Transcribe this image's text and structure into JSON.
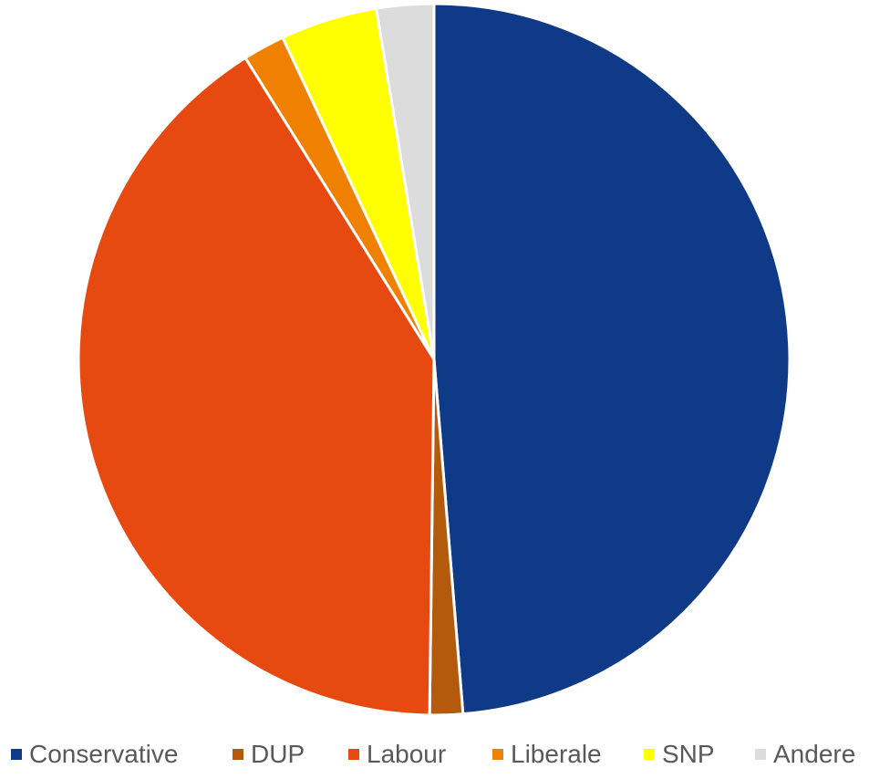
{
  "chart_data": {
    "type": "pie",
    "title": "",
    "legend_position": "bottom",
    "slices": [
      {
        "label": "Conservative",
        "value": 48.7,
        "color": "#0f3a87"
      },
      {
        "label": "DUP",
        "value": 1.5,
        "color": "#b45a0c"
      },
      {
        "label": "Labour",
        "value": 40.9,
        "color": "#e64a10"
      },
      {
        "label": "Liberale",
        "value": 1.9,
        "color": "#ef8000"
      },
      {
        "label": "SNP",
        "value": 4.4,
        "color": "#ffff00"
      },
      {
        "label": "Andere",
        "value": 2.6,
        "color": "#dcdcdc"
      }
    ]
  }
}
